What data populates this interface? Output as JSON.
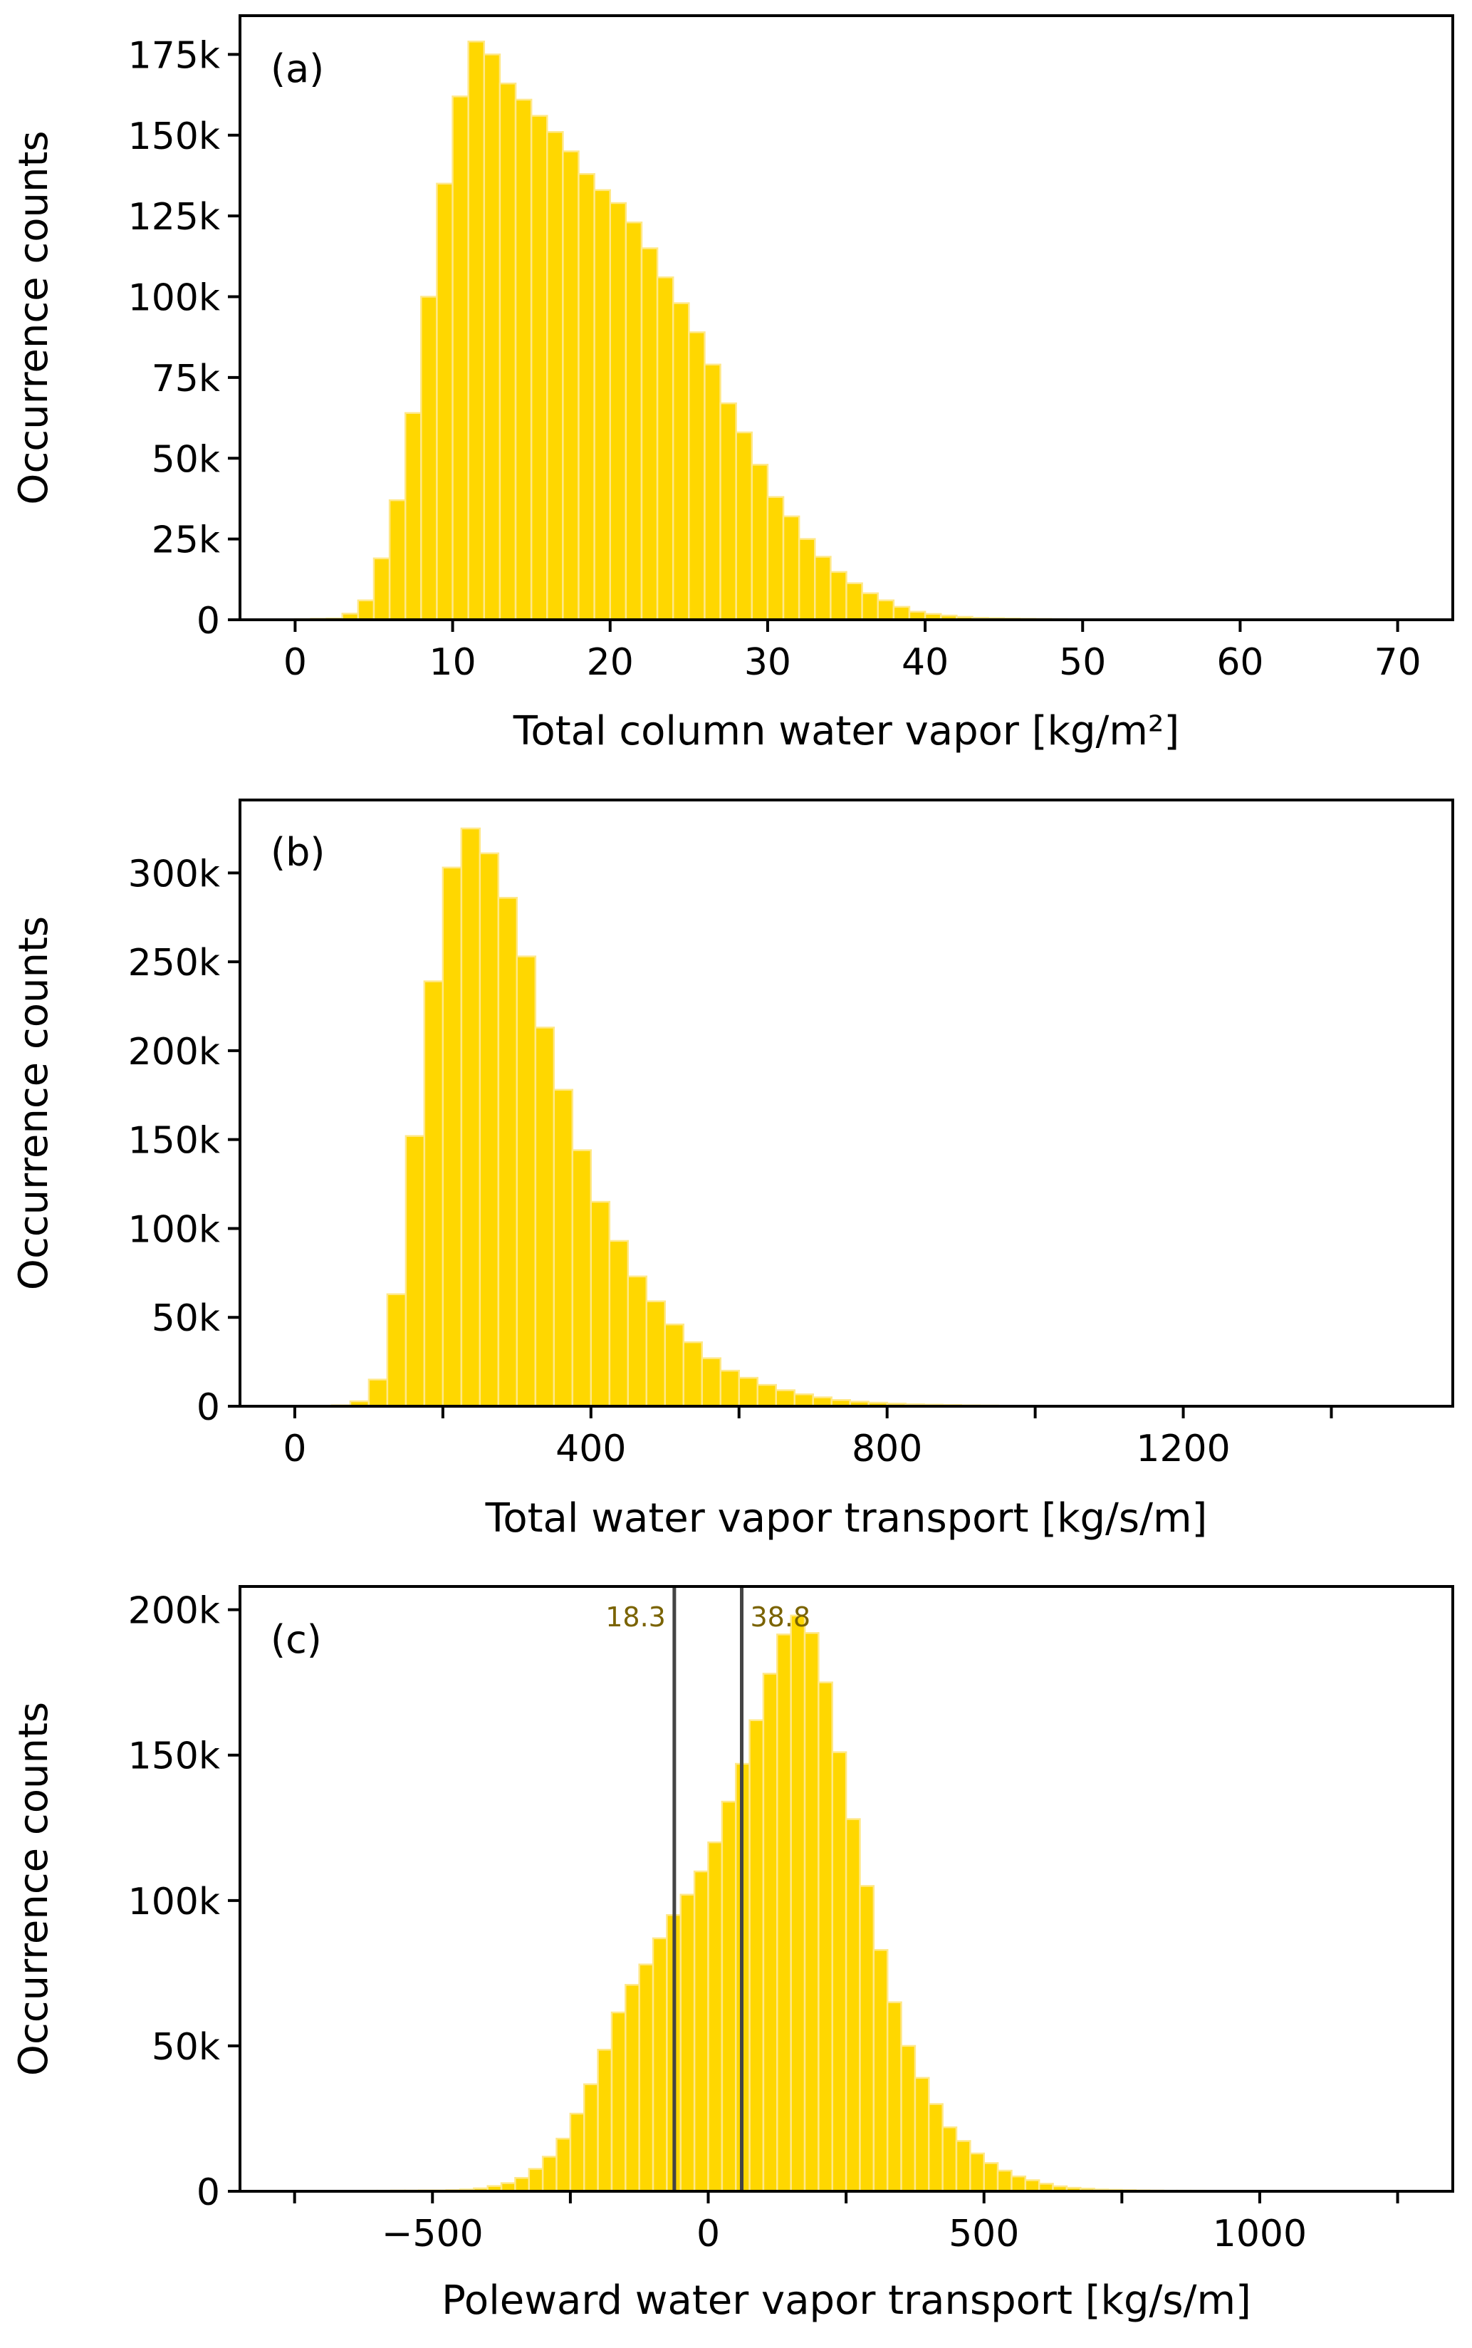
{
  "chart_data": [
    {
      "type": "bar",
      "panel_label": "(a)",
      "xlabel": "Total column water vapor [kg/m²]",
      "ylabel": "Occurrence counts",
      "xlim": [
        -3.5,
        73.5
      ],
      "ylim": [
        0,
        187000
      ],
      "xticks": [
        0,
        10,
        20,
        30,
        40,
        50,
        60,
        70
      ],
      "xtick_labels": [
        "0",
        "10",
        "20",
        "30",
        "40",
        "50",
        "60",
        "70"
      ],
      "yticks": [
        0,
        25000,
        50000,
        75000,
        100000,
        125000,
        150000,
        175000
      ],
      "ytick_labels": [
        "0",
        "25k",
        "50k",
        "75k",
        "100k",
        "125k",
        "150k",
        "175k"
      ],
      "bin_start": 0,
      "bin_width": 1,
      "counts_thousands": [
        0.2,
        0.3,
        0.4,
        1.9,
        6,
        19,
        37,
        64,
        100,
        135,
        162,
        179,
        175,
        166,
        161,
        156,
        151,
        145,
        138,
        133,
        129,
        123,
        115,
        106,
        98,
        89,
        79,
        67,
        58,
        48,
        38,
        32,
        25,
        19.5,
        14.8,
        11.3,
        8.2,
        6,
        4,
        2.5,
        1.8,
        1.3,
        0.9,
        0.6,
        0.5,
        0.4,
        0.3,
        0.25,
        0.2,
        0.15,
        0.1,
        0.1,
        0.1,
        0.1,
        0.1,
        0.1,
        0.1,
        0.1,
        0.1,
        0.1,
        0.1,
        0.1,
        0.1,
        0.1,
        0.1,
        0.1,
        0.1,
        0.1,
        0.1,
        0.1
      ],
      "vlines": []
    },
    {
      "type": "bar",
      "panel_label": "(b)",
      "xlabel": "Total water vapor transport [kg/s/m]",
      "ylabel": "Occurrence counts",
      "xlim": [
        -74,
        1564
      ],
      "ylim": [
        0,
        341000
      ],
      "xticks": [
        0,
        200,
        400,
        600,
        800,
        1000,
        1200,
        1400
      ],
      "xtick_labels": [
        "0",
        "",
        "400",
        "",
        "800",
        "",
        "1200",
        ""
      ],
      "yticks": [
        0,
        50000,
        100000,
        150000,
        200000,
        250000,
        300000
      ],
      "ytick_labels": [
        "0",
        "50k",
        "100k",
        "150k",
        "200k",
        "250k",
        "300k"
      ],
      "bin_start": 0,
      "bin_width": 25,
      "counts_thousands": [
        0.2,
        0.2,
        0.5,
        2.8,
        15,
        63,
        152,
        239,
        303,
        325,
        311,
        286,
        253,
        213,
        178,
        144,
        115,
        93,
        73,
        59,
        46,
        36,
        27,
        20,
        16,
        12,
        9,
        6.7,
        5,
        3.5,
        2.6,
        2,
        1.5,
        1.1,
        0.9,
        0.7,
        0.5,
        0.4,
        0.3,
        0.3,
        0.3,
        0.25,
        0.25,
        0.2,
        0.2,
        0.2,
        0.15,
        0.15,
        0.15,
        0.1,
        0.1,
        0.1,
        0.1,
        0.1,
        0.1,
        0.1,
        0.1,
        0.1,
        0.1,
        0.1
      ],
      "vlines": []
    },
    {
      "type": "bar",
      "panel_label": "(c)",
      "xlabel": "Poleward water vapor transport [kg/s/m]",
      "ylabel": "Occurrence counts",
      "xlim": [
        -849,
        1350
      ],
      "ylim": [
        0,
        208000
      ],
      "xticks": [
        -750,
        -500,
        -250,
        0,
        250,
        500,
        750,
        1000,
        1250
      ],
      "xtick_labels": [
        "",
        "−500",
        "",
        "0",
        "",
        "500",
        "",
        "1000",
        ""
      ],
      "yticks": [
        0,
        50000,
        100000,
        150000,
        200000
      ],
      "ytick_labels": [
        "0",
        "50k",
        "100k",
        "150k",
        "200k"
      ],
      "bin_start": -750,
      "bin_width": 25,
      "counts_thousands": [
        0.1,
        0.1,
        0.1,
        0.15,
        0.15,
        0.2,
        0.2,
        0.25,
        0.25,
        0.3,
        0.3,
        0.4,
        0.6,
        1.0,
        1.8,
        2.8,
        4.6,
        7.7,
        11.9,
        18.1,
        26.7,
        36.8,
        48.7,
        61.5,
        71,
        78,
        87,
        95,
        102,
        110,
        120,
        134,
        147,
        162,
        178,
        191.5,
        198,
        192,
        175,
        151,
        128,
        105,
        83,
        65,
        50,
        39,
        30,
        22,
        17.3,
        13,
        9.7,
        7.1,
        5.1,
        3.8,
        2.6,
        1.7,
        1.2,
        0.9,
        0.6,
        0.5,
        0.4,
        0.3,
        0.25,
        0.2,
        0.2,
        0.2,
        0.15,
        0.15,
        0.15,
        0.15,
        0.1,
        0.1,
        0.1,
        0.1,
        0.1,
        0.1,
        0.1,
        0.1,
        0.1
      ],
      "vlines": [
        {
          "x": -61.5,
          "label": "18.3",
          "label_side": "left"
        },
        {
          "x": 60.7,
          "label": "38.8",
          "label_side": "right"
        }
      ]
    }
  ],
  "colors": {
    "bar_fill": "#FFD700",
    "bar_edge": "#FFE888",
    "vline": "#444444",
    "annotation": "#7A6300"
  }
}
